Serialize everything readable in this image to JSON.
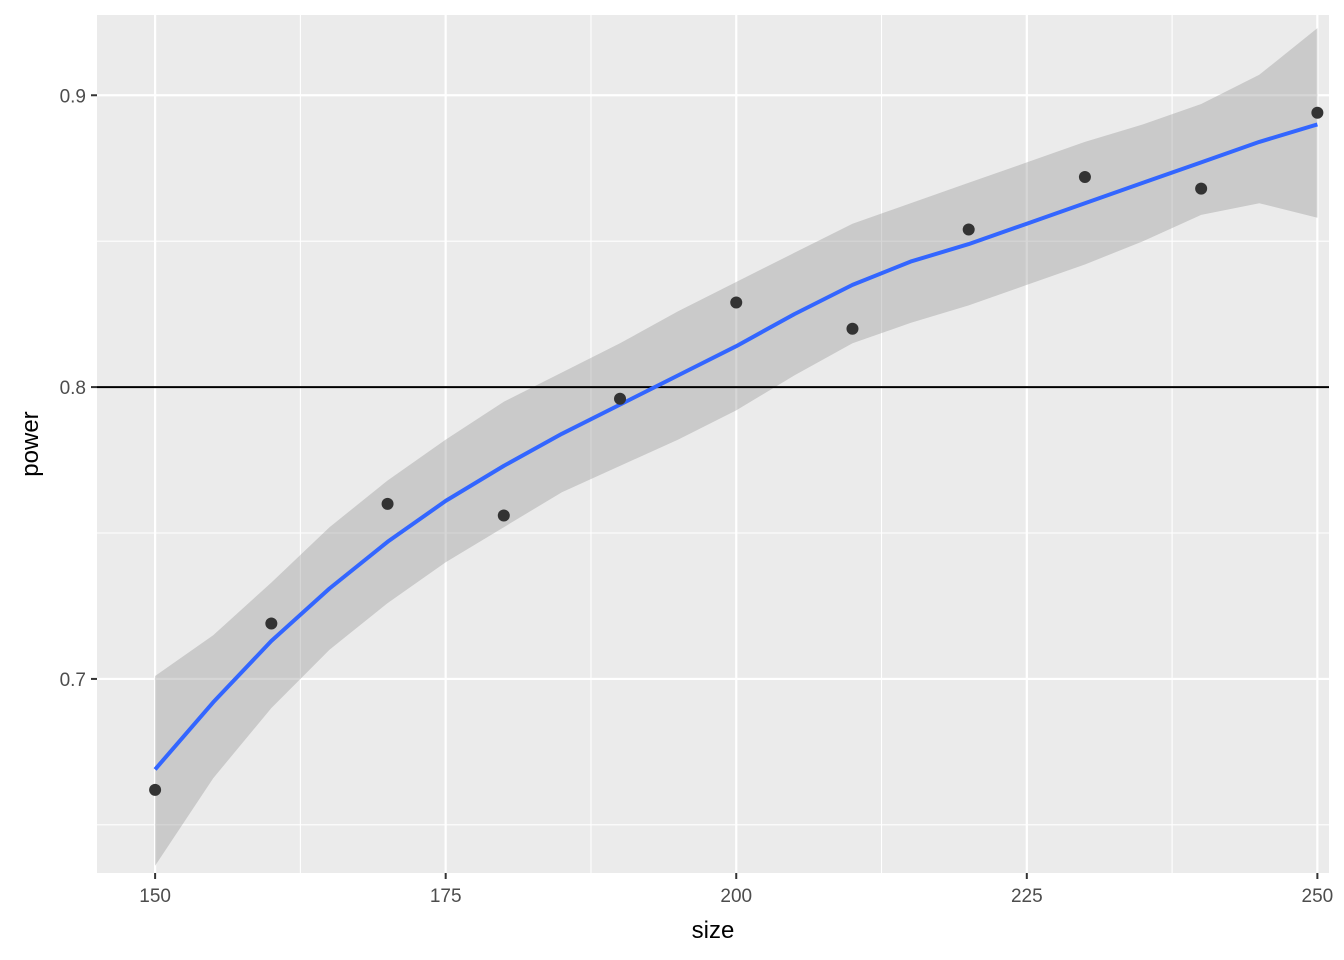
{
  "chart_data": {
    "type": "scatter",
    "title": "",
    "xlabel": "size",
    "ylabel": "power",
    "xlim": [
      145,
      251
    ],
    "ylim": [
      0.6335,
      0.9275
    ],
    "x_ticks": [
      150,
      175,
      200,
      225,
      250
    ],
    "x_tick_labels": [
      "150",
      "175",
      "200",
      "225",
      "250"
    ],
    "y_ticks": [
      0.7,
      0.8,
      0.9
    ],
    "y_tick_labels": [
      "0.7",
      "0.8",
      "0.9"
    ],
    "grid": true,
    "legend": "none",
    "points": {
      "x": [
        150,
        160,
        170,
        180,
        190,
        200,
        210,
        220,
        230,
        240,
        250
      ],
      "y": [
        0.662,
        0.719,
        0.76,
        0.756,
        0.796,
        0.829,
        0.82,
        0.854,
        0.872,
        0.868,
        0.894
      ]
    },
    "smooth": {
      "x": [
        150,
        155,
        160,
        165,
        170,
        175,
        180,
        185,
        190,
        195,
        200,
        205,
        210,
        215,
        220,
        225,
        230,
        235,
        240,
        245,
        250
      ],
      "y": [
        0.669,
        0.692,
        0.713,
        0.731,
        0.747,
        0.761,
        0.773,
        0.784,
        0.794,
        0.804,
        0.814,
        0.825,
        0.835,
        0.843,
        0.849,
        0.856,
        0.863,
        0.87,
        0.877,
        0.884,
        0.89
      ],
      "lower": [
        0.636,
        0.666,
        0.69,
        0.71,
        0.726,
        0.74,
        0.752,
        0.764,
        0.773,
        0.782,
        0.792,
        0.804,
        0.815,
        0.822,
        0.828,
        0.835,
        0.842,
        0.85,
        0.859,
        0.863,
        0.858
      ],
      "upper": [
        0.701,
        0.715,
        0.733,
        0.752,
        0.768,
        0.782,
        0.795,
        0.805,
        0.815,
        0.826,
        0.836,
        0.846,
        0.856,
        0.863,
        0.87,
        0.877,
        0.884,
        0.89,
        0.897,
        0.907,
        0.923
      ]
    },
    "hline": 0.8,
    "colors": {
      "panel": "#ebebeb",
      "grid_major": "#ffffff",
      "points": "#333333",
      "smooth_line": "#3366ff",
      "ribbon": "#cccccc",
      "hline": "#000000"
    }
  }
}
